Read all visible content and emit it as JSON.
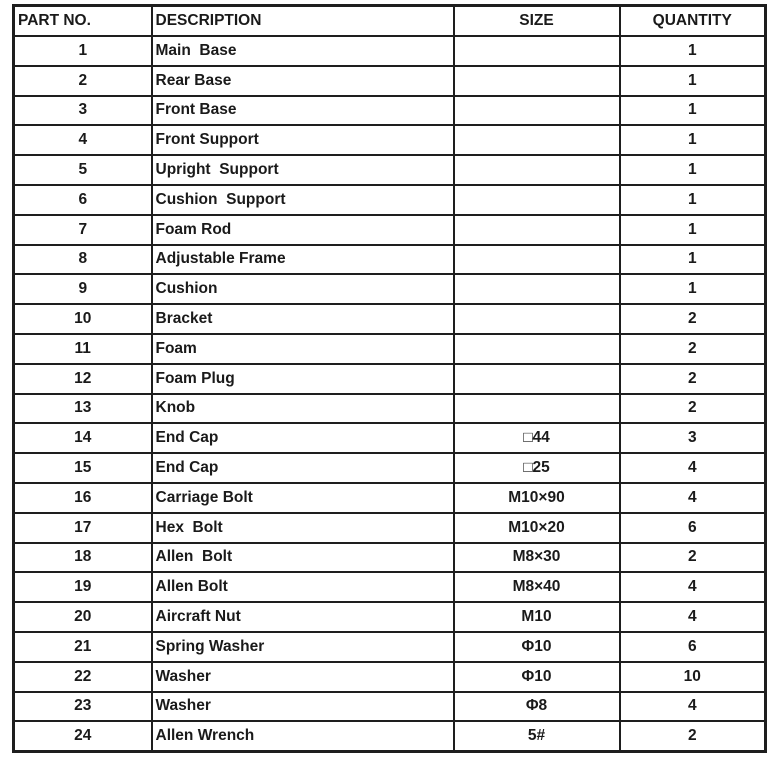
{
  "headers": {
    "part_no": "PART NO.",
    "description": "DESCRIPTION",
    "size": "SIZE",
    "quantity": "QUANTITY"
  },
  "rows": [
    {
      "part_no": "1",
      "description": "Main  Base",
      "size": "",
      "quantity": "1"
    },
    {
      "part_no": "2",
      "description": "Rear Base",
      "size": "",
      "quantity": "1"
    },
    {
      "part_no": "3",
      "description": "Front Base",
      "size": "",
      "quantity": "1"
    },
    {
      "part_no": "4",
      "description": "Front Support",
      "size": "",
      "quantity": "1"
    },
    {
      "part_no": "5",
      "description": "Upright  Support",
      "size": "",
      "quantity": "1"
    },
    {
      "part_no": "6",
      "description": "Cushion  Support",
      "size": "",
      "quantity": "1"
    },
    {
      "part_no": "7",
      "description": "Foam Rod",
      "size": "",
      "quantity": "1"
    },
    {
      "part_no": "8",
      "description": "Adjustable Frame",
      "size": "",
      "quantity": "1"
    },
    {
      "part_no": "9",
      "description": "Cushion",
      "size": "",
      "quantity": "1"
    },
    {
      "part_no": "10",
      "description": "Bracket",
      "size": "",
      "quantity": "2"
    },
    {
      "part_no": "11",
      "description": "Foam",
      "size": "",
      "quantity": "2"
    },
    {
      "part_no": "12",
      "description": "Foam Plug",
      "size": "",
      "quantity": "2"
    },
    {
      "part_no": "13",
      "description": "Knob",
      "size": "",
      "quantity": "2"
    },
    {
      "part_no": "14",
      "description": "End Cap",
      "size": "□44",
      "quantity": "3"
    },
    {
      "part_no": "15",
      "description": "End Cap",
      "size": "□25",
      "quantity": "4"
    },
    {
      "part_no": "16",
      "description": "Carriage Bolt",
      "size": "M10×90",
      "quantity": "4"
    },
    {
      "part_no": "17",
      "description": "Hex  Bolt",
      "size": "M10×20",
      "quantity": "6"
    },
    {
      "part_no": "18",
      "description": "Allen  Bolt",
      "size": "M8×30",
      "quantity": "2"
    },
    {
      "part_no": "19",
      "description": "Allen Bolt",
      "size": "M8×40",
      "quantity": "4"
    },
    {
      "part_no": "20",
      "description": "Aircraft Nut",
      "size": "M10",
      "quantity": "4"
    },
    {
      "part_no": "21",
      "description": "Spring Washer",
      "size": "Φ10",
      "quantity": "6"
    },
    {
      "part_no": "22",
      "description": "Washer",
      "size": "Φ10",
      "quantity": "10"
    },
    {
      "part_no": "23",
      "description": "Washer",
      "size": "Φ8",
      "quantity": "4"
    },
    {
      "part_no": "24",
      "description": "Allen Wrench",
      "size": "5#",
      "quantity": "2"
    }
  ]
}
